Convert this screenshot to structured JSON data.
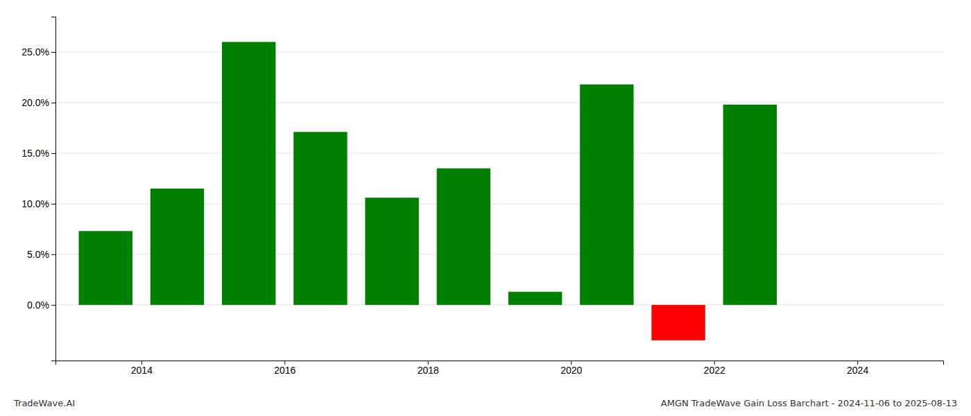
{
  "chart_data": {
    "type": "bar",
    "x": [
      2013.5,
      2014.5,
      2015.5,
      2016.5,
      2017.5,
      2018.5,
      2019.5,
      2020.5,
      2021.5,
      2022.5
    ],
    "values": [
      0.073,
      0.115,
      0.26,
      0.171,
      0.106,
      0.135,
      0.013,
      0.218,
      -0.035,
      0.198
    ],
    "colors": [
      "#008000",
      "#008000",
      "#008000",
      "#008000",
      "#008000",
      "#008000",
      "#008000",
      "#008000",
      "#ff0000",
      "#008000"
    ],
    "xlim": [
      2012.8,
      2025.2
    ],
    "xticks": [
      2014,
      2016,
      2018,
      2020,
      2022,
      2024
    ],
    "ylim": [
      -0.055,
      0.285
    ],
    "yticks": [
      {
        "value": 0.0,
        "label": "0.0%"
      },
      {
        "value": 0.05,
        "label": "5.0%"
      },
      {
        "value": 0.1,
        "label": "10.0%"
      },
      {
        "value": 0.15,
        "label": "15.0%"
      },
      {
        "value": 0.2,
        "label": "20.0%"
      },
      {
        "value": 0.25,
        "label": "25.0%"
      }
    ],
    "grid": true,
    "annotations": [
      "TradeWave.AI",
      "AMGN TradeWave Gain Loss Barchart - 2024-11-06 to 2025-08-13"
    ]
  }
}
